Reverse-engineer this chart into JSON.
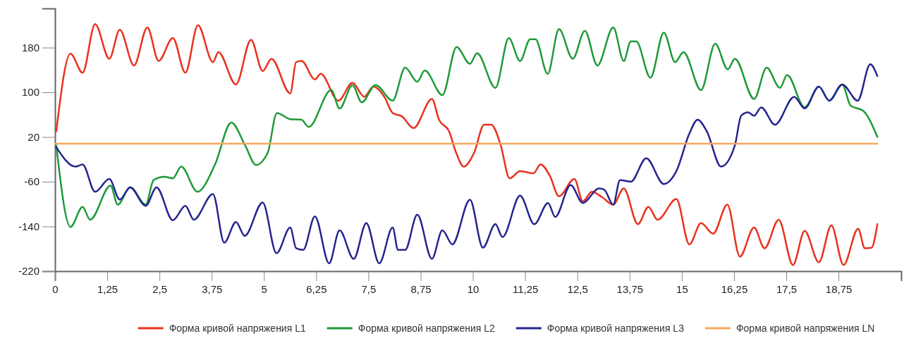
{
  "chart_data": {
    "type": "line",
    "xlim": [
      0,
      20.25
    ],
    "ylim": [
      -220,
      250
    ],
    "xticks": [
      0,
      {
        "value": 1.25,
        "label": "1,25"
      },
      {
        "value": 2.5,
        "label": "2,5"
      },
      {
        "value": 3.75,
        "label": "3,75"
      },
      5,
      {
        "value": 6.25,
        "label": "6,25"
      },
      {
        "value": 7.5,
        "label": "7,5"
      },
      {
        "value": 8.75,
        "label": "8,75"
      },
      10,
      {
        "value": 11.25,
        "label": "11,25"
      },
      {
        "value": 12.5,
        "label": "12,5"
      },
      {
        "value": 13.75,
        "label": "13,75"
      },
      15,
      {
        "value": 16.25,
        "label": "16,25"
      },
      {
        "value": 17.5,
        "label": "17,5"
      },
      {
        "value": 18.75,
        "label": "18,75"
      }
    ],
    "yticks": [
      -220,
      -140,
      -60,
      20,
      100,
      180
    ],
    "grid": false,
    "legend": "bottom",
    "marker": "none",
    "line_style": "solid",
    "series": [
      {
        "name": "Форма кривой напряжения L1",
        "color": "#e8321e",
        "x": [
          0.03,
          0.37,
          0.66,
          0.96,
          1.3,
          1.55,
          1.89,
          2.21,
          2.48,
          2.82,
          3.12,
          3.42,
          3.78,
          3.91,
          4.33,
          4.69,
          4.97,
          5.18,
          5.63,
          5.77,
          5.9,
          6.22,
          6.36,
          6.78,
          7.12,
          7.4,
          7.62,
          7.88,
          8.08,
          8.3,
          8.58,
          9.02,
          9.19,
          9.43,
          9.6,
          9.78,
          10.03,
          10.27,
          10.44,
          10.66,
          10.88,
          11.13,
          11.45,
          11.62,
          11.84,
          12.06,
          12.43,
          12.63,
          12.85,
          13.1,
          13.36,
          13.61,
          13.95,
          14.2,
          14.42,
          14.87,
          15.18,
          15.46,
          15.75,
          16.09,
          16.39,
          16.73,
          16.98,
          17.32,
          17.66,
          17.94,
          18.28,
          18.58,
          18.87,
          19.22,
          19.38,
          19.54,
          19.68
        ],
        "values": [
          30,
          169,
          135,
          222,
          160,
          212,
          148,
          216,
          156,
          197,
          135,
          220,
          154,
          172,
          114,
          194,
          138,
          160,
          98,
          154,
          156,
          123,
          133,
          85,
          117,
          92,
          110,
          92,
          63,
          57,
          36,
          88,
          51,
          30,
          -8,
          -33,
          -8,
          42,
          42,
          7,
          -54,
          -41,
          -45,
          -29,
          -49,
          -86,
          -55,
          -95,
          -78,
          -88,
          -101,
          -72,
          -136,
          -105,
          -128,
          -91,
          -172,
          -134,
          -153,
          -101,
          -194,
          -142,
          -179,
          -128,
          -209,
          -148,
          -204,
          -138,
          -209,
          -144,
          -179,
          -178,
          -136
        ]
      },
      {
        "name": "Форма кривой напряжения L2",
        "color": "#1f9a3a",
        "x": [
          0.03,
          0.37,
          0.66,
          0.84,
          1.33,
          1.5,
          1.8,
          2.17,
          2.36,
          2.61,
          2.82,
          3.02,
          3.41,
          3.83,
          4.22,
          4.55,
          4.81,
          5.09,
          5.31,
          5.63,
          5.9,
          6.07,
          6.61,
          6.81,
          7.12,
          7.34,
          7.67,
          8.08,
          8.38,
          8.67,
          8.85,
          9.27,
          9.61,
          9.93,
          10.1,
          10.54,
          10.86,
          11.13,
          11.37,
          11.5,
          11.79,
          12.06,
          12.39,
          12.68,
          12.98,
          13.36,
          13.61,
          13.78,
          13.91,
          14.25,
          14.57,
          14.84,
          15.04,
          15.46,
          15.8,
          16.1,
          16.27,
          16.73,
          17.03,
          17.35,
          17.52,
          17.94,
          18.28,
          18.53,
          18.84,
          19.04,
          19.34,
          19.68
        ],
        "values": [
          5,
          -141,
          -105,
          -128,
          -67,
          -101,
          -70,
          -101,
          -57,
          -51,
          -54,
          -33,
          -78,
          -29,
          46,
          5,
          -30,
          -8,
          63,
          52,
          51,
          38,
          104,
          71,
          113,
          82,
          113,
          85,
          144,
          119,
          139,
          95,
          181,
          151,
          170,
          108,
          197,
          156,
          195,
          195,
          133,
          213,
          160,
          210,
          148,
          216,
          156,
          191,
          191,
          126,
          207,
          154,
          172,
          104,
          187,
          141,
          160,
          88,
          144,
          108,
          131,
          73,
          110,
          85,
          114,
          76,
          67,
          20
        ]
      },
      {
        "name": "Форма кривой напряжения L3",
        "color": "#25258f",
        "x": [
          0.03,
          0.49,
          0.66,
          0.96,
          1.3,
          1.55,
          1.8,
          2.17,
          2.43,
          2.82,
          3.12,
          3.32,
          3.78,
          4.05,
          4.33,
          4.54,
          4.97,
          5.3,
          5.63,
          5.77,
          5.94,
          6.22,
          6.56,
          6.81,
          7.15,
          7.45,
          7.76,
          8.08,
          8.21,
          8.38,
          8.67,
          9.02,
          9.27,
          9.51,
          9.93,
          10.24,
          10.54,
          10.71,
          11.13,
          11.47,
          11.8,
          11.97,
          12.34,
          12.63,
          13.02,
          13.14,
          13.36,
          13.52,
          13.78,
          14.15,
          14.57,
          14.87,
          15.18,
          15.38,
          15.6,
          15.94,
          16.27,
          16.42,
          16.59,
          16.73,
          16.9,
          17.23,
          17.69,
          17.94,
          18.28,
          18.53,
          18.84,
          19.21,
          19.51,
          19.68
        ],
        "values": [
          2,
          -33,
          -29,
          -78,
          -55,
          -92,
          -70,
          -103,
          -70,
          -129,
          -103,
          -128,
          -82,
          -169,
          -132,
          -157,
          -97,
          -188,
          -142,
          -179,
          -182,
          -122,
          -206,
          -147,
          -198,
          -134,
          -206,
          -142,
          -182,
          -182,
          -119,
          -198,
          -147,
          -172,
          -92,
          -178,
          -136,
          -159,
          -85,
          -136,
          -98,
          -123,
          -66,
          -98,
          -72,
          -74,
          -101,
          -57,
          -60,
          -18,
          -64,
          -41,
          26,
          51,
          30,
          -33,
          5,
          58,
          64,
          58,
          73,
          42,
          92,
          71,
          110,
          85,
          114,
          85,
          150,
          129
        ]
      },
      {
        "name": "Форма кривой напряжения LN",
        "color": "#f7a65c",
        "x": [
          0,
          19.68
        ],
        "values": [
          8,
          8
        ]
      }
    ]
  }
}
